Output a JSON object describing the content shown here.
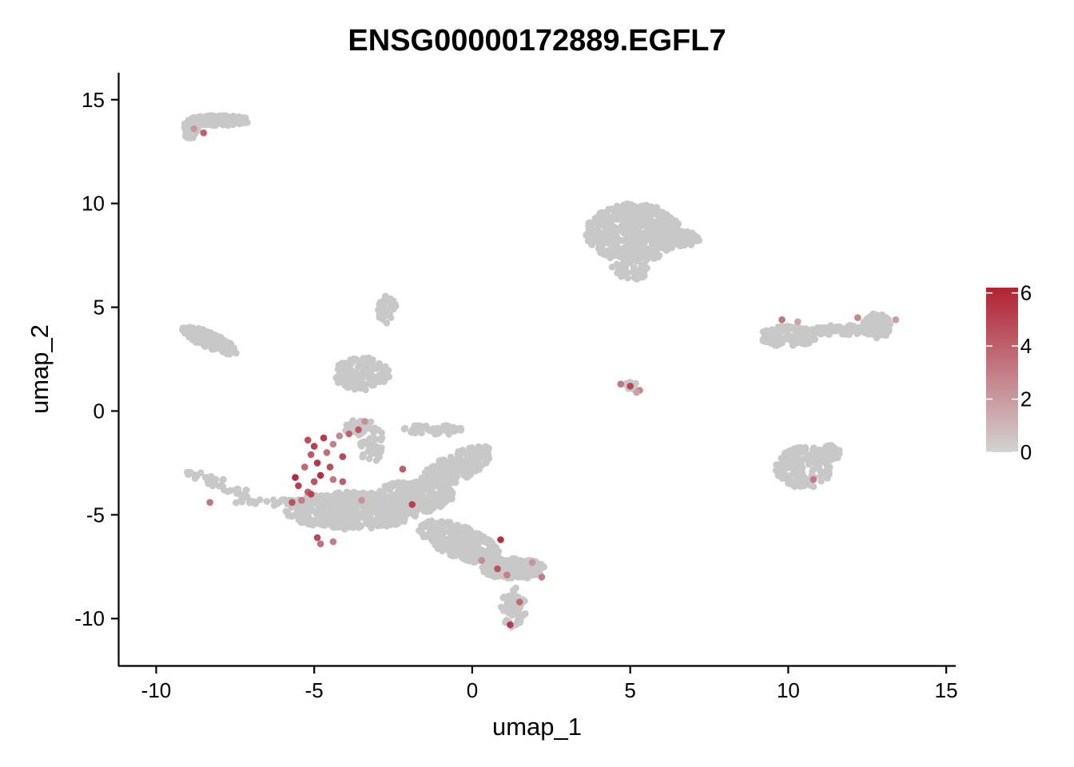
{
  "chart_data": {
    "type": "scatter",
    "title": "ENSG00000172889.EGFL7",
    "xlabel": "umap_1",
    "ylabel": "umap_2",
    "xlim": [
      -11.2,
      15.3
    ],
    "ylim": [
      -12.3,
      16.3
    ],
    "x_ticks": [
      -10,
      -5,
      0,
      5,
      10,
      15
    ],
    "x_tick_labels": [
      "-10",
      "-5",
      "0",
      "5",
      "10",
      "15"
    ],
    "y_ticks": [
      -10,
      -5,
      0,
      5,
      10,
      15
    ],
    "y_tick_labels": [
      "-10",
      "-5",
      "0",
      "5",
      "10",
      "15"
    ],
    "grid": false,
    "legend": {
      "placement": "right",
      "ticks": [
        0,
        2,
        4,
        6
      ],
      "tick_labels": [
        "0",
        "2",
        "4",
        "6"
      ],
      "min": 0,
      "max": 6.2,
      "low_color": "#d3d3d3",
      "high_color": "#b22234"
    },
    "point_color_base": "#c8c8c8",
    "clusters": [
      {
        "shape": "ellipse",
        "cx": -8.0,
        "cy": 14.0,
        "rx": 1.0,
        "ry": 0.25,
        "angle": 0,
        "n": 140
      },
      {
        "shape": "ellipse",
        "cx": -8.9,
        "cy": 13.6,
        "rx": 0.25,
        "ry": 0.5,
        "angle": 0,
        "n": 40
      },
      {
        "shape": "ellipse",
        "cx": -8.3,
        "cy": 3.4,
        "rx": 1.05,
        "ry": 0.35,
        "angle": -35,
        "n": 170
      },
      {
        "shape": "ellipse",
        "cx": -2.7,
        "cy": 4.9,
        "rx": 0.3,
        "ry": 0.7,
        "angle": 0,
        "n": 50
      },
      {
        "shape": "ellipse",
        "cx": -3.5,
        "cy": 1.8,
        "rx": 0.9,
        "ry": 0.8,
        "angle": 0,
        "n": 140
      },
      {
        "shape": "ellipse",
        "cx": -3.7,
        "cy": -0.8,
        "rx": 0.35,
        "ry": 0.4,
        "angle": 0,
        "n": 30
      },
      {
        "shape": "ellipse",
        "cx": -3.2,
        "cy": -1.5,
        "rx": 0.4,
        "ry": 1.0,
        "angle": 0,
        "n": 50
      },
      {
        "shape": "ellipse",
        "cx": 5.1,
        "cy": 8.6,
        "rx": 1.5,
        "ry": 1.4,
        "angle": 0,
        "n": 520
      },
      {
        "shape": "ellipse",
        "cx": 6.4,
        "cy": 8.3,
        "rx": 0.8,
        "ry": 0.4,
        "angle": 0,
        "n": 100
      },
      {
        "shape": "ellipse",
        "cx": 5.0,
        "cy": 6.8,
        "rx": 0.6,
        "ry": 0.5,
        "angle": 0,
        "n": 40
      },
      {
        "shape": "ellipse",
        "cx": 10.0,
        "cy": 3.6,
        "rx": 0.9,
        "ry": 0.5,
        "angle": 0,
        "n": 130
      },
      {
        "shape": "ellipse",
        "cx": 11.6,
        "cy": 3.9,
        "rx": 0.9,
        "ry": 0.25,
        "angle": 0,
        "n": 60
      },
      {
        "shape": "ellipse",
        "cx": 12.8,
        "cy": 4.1,
        "rx": 0.45,
        "ry": 0.6,
        "angle": 0,
        "n": 100
      },
      {
        "shape": "ellipse",
        "cx": 10.5,
        "cy": -2.7,
        "rx": 0.9,
        "ry": 1.0,
        "angle": 0,
        "n": 150
      },
      {
        "shape": "ellipse",
        "cx": 11.3,
        "cy": -2.0,
        "rx": 0.4,
        "ry": 0.35,
        "angle": 0,
        "n": 40
      },
      {
        "shape": "ellipse",
        "cx": 5.0,
        "cy": 1.2,
        "rx": 0.25,
        "ry": 0.2,
        "angle": 0,
        "n": 15
      },
      {
        "shape": "ellipse",
        "cx": -8.0,
        "cy": -3.5,
        "rx": 1.3,
        "ry": 0.25,
        "angle": -30,
        "n": 40
      },
      {
        "shape": "ellipse",
        "cx": -6.2,
        "cy": -4.4,
        "rx": 1.3,
        "ry": 0.15,
        "angle": 0,
        "n": 35
      },
      {
        "shape": "ellipse",
        "cx": -3.8,
        "cy": -4.8,
        "rx": 2.1,
        "ry": 0.9,
        "angle": 0,
        "n": 520
      },
      {
        "shape": "ellipse",
        "cx": -1.8,
        "cy": -4.1,
        "rx": 1.2,
        "ry": 0.8,
        "angle": 0,
        "n": 200
      },
      {
        "shape": "ellipse",
        "cx": -0.5,
        "cy": -2.7,
        "rx": 1.4,
        "ry": 0.6,
        "angle": 40,
        "n": 200
      },
      {
        "shape": "ellipse",
        "cx": -1.2,
        "cy": -0.9,
        "rx": 1.0,
        "ry": 0.25,
        "angle": 0,
        "n": 50
      },
      {
        "shape": "ellipse",
        "cx": -0.4,
        "cy": -6.3,
        "rx": 1.5,
        "ry": 0.7,
        "angle": -35,
        "n": 260
      },
      {
        "shape": "ellipse",
        "cx": 1.3,
        "cy": -7.6,
        "rx": 1.0,
        "ry": 0.5,
        "angle": 0,
        "n": 200
      },
      {
        "shape": "ellipse",
        "cx": 1.3,
        "cy": -9.5,
        "rx": 0.4,
        "ry": 1.0,
        "angle": 0,
        "n": 70
      }
    ],
    "expressing_cells": [
      {
        "x": -5.2,
        "y": -1.4,
        "value": 4.6
      },
      {
        "x": -5.0,
        "y": -1.7,
        "value": 5.1
      },
      {
        "x": -5.1,
        "y": -2.1,
        "value": 4.2
      },
      {
        "x": -4.9,
        "y": -2.5,
        "value": 5.5
      },
      {
        "x": -5.3,
        "y": -2.7,
        "value": 3.8
      },
      {
        "x": -4.8,
        "y": -3.1,
        "value": 5.8
      },
      {
        "x": -5.0,
        "y": -3.4,
        "value": 4.4
      },
      {
        "x": -5.5,
        "y": -3.6,
        "value": 5.2
      },
      {
        "x": -5.2,
        "y": -3.9,
        "value": 4.0
      },
      {
        "x": -4.6,
        "y": -2.0,
        "value": 3.5
      },
      {
        "x": -4.5,
        "y": -2.7,
        "value": 4.7
      },
      {
        "x": -4.4,
        "y": -3.3,
        "value": 3.2
      },
      {
        "x": -4.7,
        "y": -1.3,
        "value": 5.4
      },
      {
        "x": -4.4,
        "y": -1.6,
        "value": 2.8
      },
      {
        "x": -4.1,
        "y": -2.2,
        "value": 4.9
      },
      {
        "x": -3.9,
        "y": -1.1,
        "value": 3.9
      },
      {
        "x": -3.6,
        "y": -0.9,
        "value": 4.3
      },
      {
        "x": -4.2,
        "y": -1.2,
        "value": 2.6
      },
      {
        "x": -5.6,
        "y": -3.2,
        "value": 5.9
      },
      {
        "x": -5.7,
        "y": -4.4,
        "value": 4.5
      },
      {
        "x": -5.4,
        "y": -4.3,
        "value": 3.1
      },
      {
        "x": -5.1,
        "y": -4.0,
        "value": 5.0
      },
      {
        "x": -4.1,
        "y": -3.4,
        "value": 4.1
      },
      {
        "x": -4.9,
        "y": -6.1,
        "value": 4.8
      },
      {
        "x": -4.8,
        "y": -6.4,
        "value": 3.4
      },
      {
        "x": -4.4,
        "y": -6.3,
        "value": 2.9
      },
      {
        "x": -3.4,
        "y": -0.5,
        "value": 2.4
      },
      {
        "x": -2.2,
        "y": -2.8,
        "value": 4.2
      },
      {
        "x": -1.9,
        "y": -4.5,
        "value": 5.1
      },
      {
        "x": -3.5,
        "y": -4.3,
        "value": 2.3
      },
      {
        "x": -8.5,
        "y": 13.4,
        "value": 4.0
      },
      {
        "x": -8.8,
        "y": 13.6,
        "value": 2.1
      },
      {
        "x": -8.3,
        "y": -4.4,
        "value": 3.3
      },
      {
        "x": 0.9,
        "y": -6.2,
        "value": 5.7
      },
      {
        "x": 0.8,
        "y": -7.6,
        "value": 4.4
      },
      {
        "x": 1.1,
        "y": -7.9,
        "value": 2.9
      },
      {
        "x": 1.2,
        "y": -10.3,
        "value": 5.3
      },
      {
        "x": 1.5,
        "y": -9.2,
        "value": 3.6
      },
      {
        "x": 0.3,
        "y": -7.2,
        "value": 2.5
      },
      {
        "x": 2.2,
        "y": -8.0,
        "value": 3.0
      },
      {
        "x": 1.9,
        "y": -7.3,
        "value": 2.2
      },
      {
        "x": 4.7,
        "y": 1.3,
        "value": 3.2
      },
      {
        "x": 5.0,
        "y": 1.2,
        "value": 4.9
      },
      {
        "x": 5.3,
        "y": 1.0,
        "value": 2.7
      },
      {
        "x": 5.2,
        "y": 0.9,
        "value": 1.8
      },
      {
        "x": 9.8,
        "y": 4.4,
        "value": 3.3
      },
      {
        "x": 12.2,
        "y": 4.5,
        "value": 2.6
      },
      {
        "x": 10.8,
        "y": -3.3,
        "value": 3.1
      },
      {
        "x": 13.4,
        "y": 4.4,
        "value": 1.9
      },
      {
        "x": 10.3,
        "y": 4.3,
        "value": 1.6
      }
    ]
  }
}
